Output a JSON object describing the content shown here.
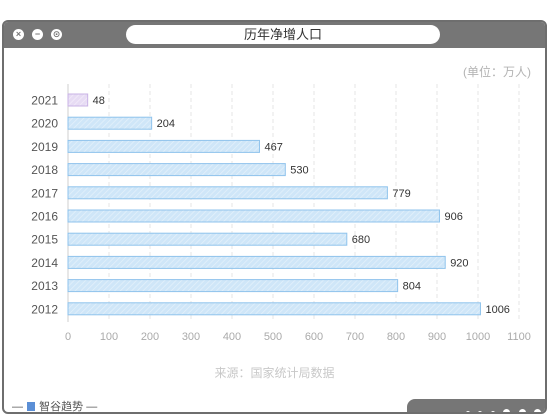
{
  "window": {
    "title": "历年净增人口",
    "unit": "(单位：万人)",
    "source": "来源：国家统计局数据",
    "footer_brand": "智谷趋势"
  },
  "colors": {
    "bar_fill": "#cfe6f8",
    "bar_stroke": "#8fc3ec",
    "highlight_fill": "#e7dcf4",
    "highlight_stroke": "#c9b3e6",
    "grid": "#e6e6e6",
    "axis_text": "#aaaaaa",
    "frame": "#767676"
  },
  "chart_data": {
    "type": "bar",
    "orientation": "horizontal",
    "title": "历年净增人口",
    "unit": "万人",
    "categories": [
      "2021",
      "2020",
      "2019",
      "2018",
      "2017",
      "2016",
      "2015",
      "2014",
      "2013",
      "2012"
    ],
    "values": [
      48,
      204,
      467,
      530,
      779,
      906,
      680,
      920,
      804,
      1006
    ],
    "xlim": [
      0,
      1100
    ],
    "xticks": [
      0,
      100,
      200,
      300,
      400,
      500,
      600,
      700,
      800,
      900,
      1000,
      1100
    ],
    "grid": "vertical dashed",
    "highlight_category": "2021"
  }
}
